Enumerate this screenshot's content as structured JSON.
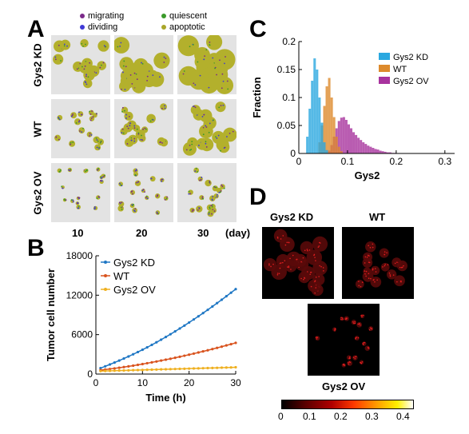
{
  "panels": [
    "A",
    "B",
    "C",
    "D"
  ],
  "panelA": {
    "legend": [
      {
        "label": "migrating",
        "color": "#7b2a8a"
      },
      {
        "label": "quiescent",
        "color": "#3a9a2a"
      },
      {
        "label": "dividing",
        "color": "#3f3ad6"
      },
      {
        "label": "apoptotic",
        "color": "#a9a62a"
      }
    ],
    "rows": [
      "Gys2 KD",
      "WT",
      "Gys2 OV"
    ],
    "cols": [
      "10",
      "20",
      "30"
    ],
    "unit": "(day)",
    "fill": "#b3b02c"
  },
  "panelD": {
    "labels": [
      "Gys2 KD",
      "WT",
      "Gys2 OV"
    ],
    "colorbar": {
      "ticks": [
        "0",
        "0.1",
        "0.2",
        "0.3",
        "0.4"
      ]
    }
  },
  "chart_data": [
    {
      "type": "line",
      "xlabel": "Time (h)",
      "ylabel": "Tumor cell number",
      "xlim": [
        0,
        30
      ],
      "ylim": [
        0,
        18000
      ],
      "xticks": [
        "0",
        "10",
        "20",
        "30"
      ],
      "yticks": [
        "0",
        "6000",
        "12000",
        "18000"
      ],
      "legend_position": "top-left",
      "x": [
        1,
        2,
        3,
        4,
        5,
        6,
        7,
        8,
        9,
        10,
        11,
        12,
        13,
        14,
        15,
        16,
        17,
        18,
        19,
        20,
        21,
        22,
        23,
        24,
        25,
        26,
        27,
        28,
        29,
        30
      ],
      "series": [
        {
          "name": "Gys2 KD",
          "color": "#1f77c4",
          "values": [
            900,
            1180,
            1460,
            1750,
            2050,
            2360,
            2680,
            3010,
            3350,
            3700,
            4060,
            4440,
            4830,
            5230,
            5640,
            6060,
            6490,
            6930,
            7380,
            7840,
            8310,
            8790,
            9280,
            9770,
            10280,
            10790,
            11310,
            11840,
            12380,
            12920
          ]
        },
        {
          "name": "WT",
          "color": "#d9531e",
          "values": [
            600,
            680,
            770,
            860,
            960,
            1060,
            1170,
            1280,
            1400,
            1520,
            1650,
            1780,
            1910,
            2050,
            2190,
            2330,
            2480,
            2630,
            2790,
            2950,
            3110,
            3280,
            3450,
            3620,
            3800,
            3980,
            4170,
            4360,
            4550,
            4750
          ]
        },
        {
          "name": "Gys2 OV",
          "color": "#efb020",
          "values": [
            450,
            470,
            490,
            510,
            530,
            550,
            570,
            590,
            610,
            630,
            650,
            670,
            690,
            710,
            730,
            750,
            770,
            790,
            810,
            830,
            850,
            870,
            890,
            910,
            930,
            950,
            970,
            990,
            1010,
            1030
          ]
        }
      ]
    },
    {
      "type": "bar",
      "xlabel": "Gys2",
      "ylabel": "Fraction",
      "xlim": [
        0,
        0.32
      ],
      "ylim": [
        0,
        0.2
      ],
      "xticks": [
        "0",
        "0.1",
        "0.2",
        "0.3"
      ],
      "yticks": [
        "0",
        "0.05",
        "0.1",
        "0.15",
        "0.2"
      ],
      "legend_position": "top-right",
      "bin_width": 0.005,
      "series": [
        {
          "name": "Gys2 KD",
          "color": "#2aa8e0",
          "start": 0.015,
          "values": [
            0.03,
            0.08,
            0.13,
            0.17,
            0.15,
            0.1,
            0.055,
            0.02,
            0.006
          ]
        },
        {
          "name": "WT",
          "color": "#dd8a2c",
          "start": 0.04,
          "values": [
            0.02,
            0.05,
            0.085,
            0.12,
            0.135,
            0.1,
            0.065,
            0.03,
            0.012,
            0.004
          ]
        },
        {
          "name": "Gys2 OV",
          "color": "#a8339e",
          "start": 0.06,
          "values": [
            0.005,
            0.015,
            0.03,
            0.045,
            0.058,
            0.064,
            0.065,
            0.06,
            0.052,
            0.045,
            0.038,
            0.033,
            0.028,
            0.024,
            0.02,
            0.017,
            0.014,
            0.012,
            0.01,
            0.008,
            0.007,
            0.005,
            0.004,
            0.003,
            0.002,
            0.002,
            0.001,
            0.001
          ]
        }
      ]
    }
  ]
}
